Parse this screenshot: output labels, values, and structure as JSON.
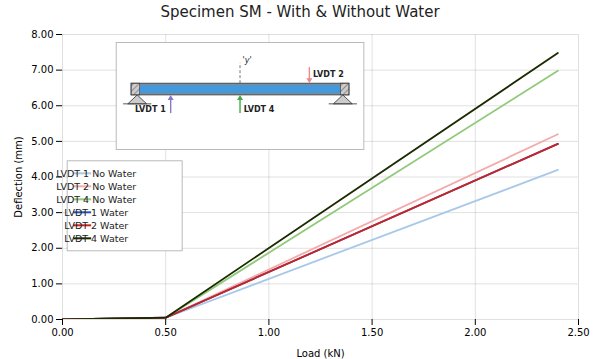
{
  "chart_data": {
    "type": "line",
    "title": "Specimen SM - With & Without Water",
    "xlabel": "Load (kN)",
    "ylabel": "Deflection (mm)",
    "xlim": [
      0.0,
      2.5
    ],
    "ylim": [
      0.0,
      8.0
    ],
    "xticks": [
      {
        "value": 0.0,
        "label": "0.00"
      },
      {
        "value": 0.5,
        "label": "0.50"
      },
      {
        "value": 1.0,
        "label": "1.00"
      },
      {
        "value": 1.5,
        "label": "1.50"
      },
      {
        "value": 2.0,
        "label": "2.00"
      },
      {
        "value": 2.5,
        "label": "2.50"
      }
    ],
    "yticks": [
      {
        "value": 0.0,
        "label": "0.00"
      },
      {
        "value": 1.0,
        "label": "1.00"
      },
      {
        "value": 2.0,
        "label": "2.00"
      },
      {
        "value": 3.0,
        "label": "3.00"
      },
      {
        "value": 4.0,
        "label": "4.00"
      },
      {
        "value": 5.0,
        "label": "5.00"
      },
      {
        "value": 6.0,
        "label": "6.00"
      },
      {
        "value": 7.0,
        "label": "7.00"
      },
      {
        "value": 8.0,
        "label": "8.00"
      }
    ],
    "grid": true,
    "legend": "left",
    "x": [
      0.0,
      0.5,
      2.4
    ],
    "series": [
      {
        "name": "LVDT 1 No Water",
        "color": "#a8c8ea",
        "values": [
          0.0,
          0.05,
          4.2
        ]
      },
      {
        "name": "LVDT 2 No Water",
        "color": "#f4aaaa",
        "values": [
          0.0,
          0.05,
          5.2
        ]
      },
      {
        "name": "LVDT 4 No Water",
        "color": "#90c978",
        "values": [
          0.0,
          0.05,
          6.98
        ]
      },
      {
        "name": "LVDT 1 Water",
        "color": "#2255bb",
        "values": [
          0.0,
          0.05,
          4.93
        ]
      },
      {
        "name": "LVDT 2 Water",
        "color": "#cc2222",
        "values": [
          0.0,
          0.05,
          4.93
        ]
      },
      {
        "name": "LVDT 4 Water",
        "color": "#1a2a00",
        "values": [
          0.0,
          0.05,
          7.48
        ]
      }
    ],
    "annotations": [
      "LVDT 1",
      "LVDT 4",
      "LVDT 2",
      "'y'"
    ]
  }
}
